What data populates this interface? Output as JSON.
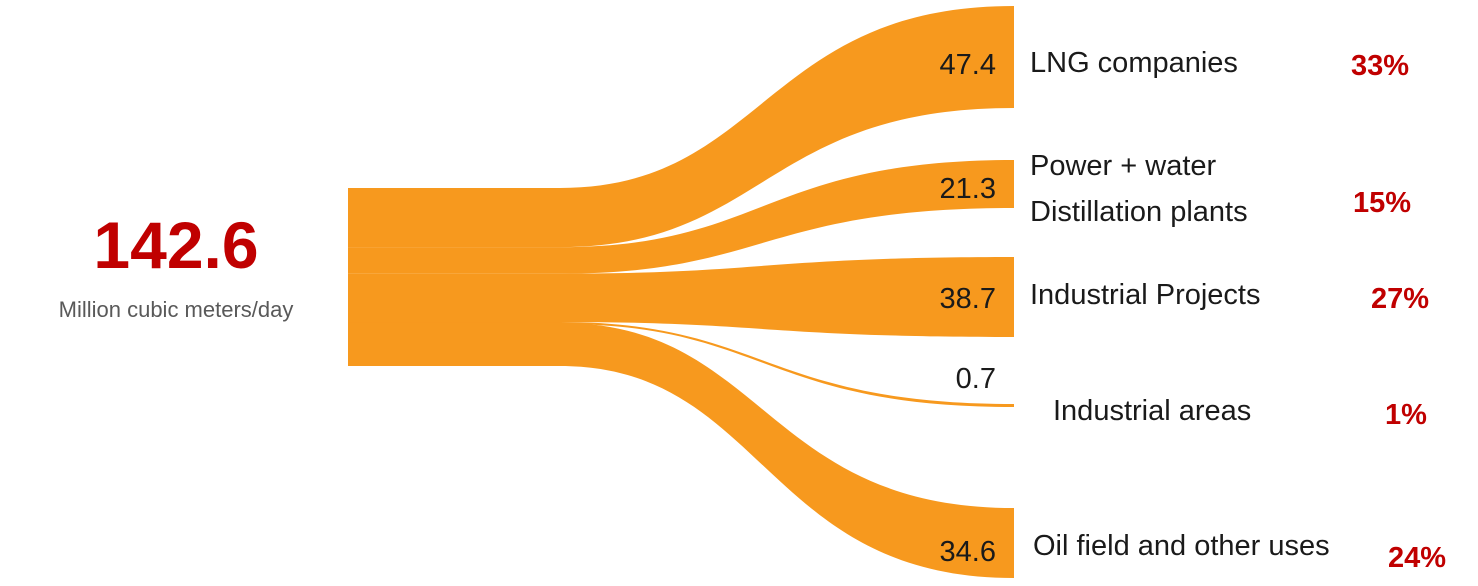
{
  "colors": {
    "flow": "#F7991E",
    "accent": "#C00000",
    "text": "#1a1a1a",
    "muted": "#595959"
  },
  "source": {
    "total": "142.6",
    "unit": "Million cubic meters/day"
  },
  "chart_data": {
    "type": "sankey",
    "source_total": 142.6,
    "source_unit": "Million cubic meters/day",
    "flows": [
      {
        "name": "LNG companies",
        "label_lines": [
          "LNG companies"
        ],
        "value": 47.4,
        "value_label": "47.4",
        "percent_label": "33%"
      },
      {
        "name": "Power + water Distillation plants",
        "label_lines": [
          "Power + water",
          "Distillation plants"
        ],
        "value": 21.3,
        "value_label": "21.3",
        "percent_label": "15%"
      },
      {
        "name": "Industrial Projects",
        "label_lines": [
          "Industrial Projects"
        ],
        "value": 38.7,
        "value_label": "38.7",
        "percent_label": "27%"
      },
      {
        "name": "Industrial areas",
        "label_lines": [
          "Industrial areas"
        ],
        "value": 0.7,
        "value_label": "0.7",
        "percent_label": "1%"
      },
      {
        "name": "Oil field and other uses",
        "label_lines": [
          "Oil field and other uses"
        ],
        "value": 34.6,
        "value_label": "34.6",
        "percent_label": "24%"
      }
    ]
  }
}
